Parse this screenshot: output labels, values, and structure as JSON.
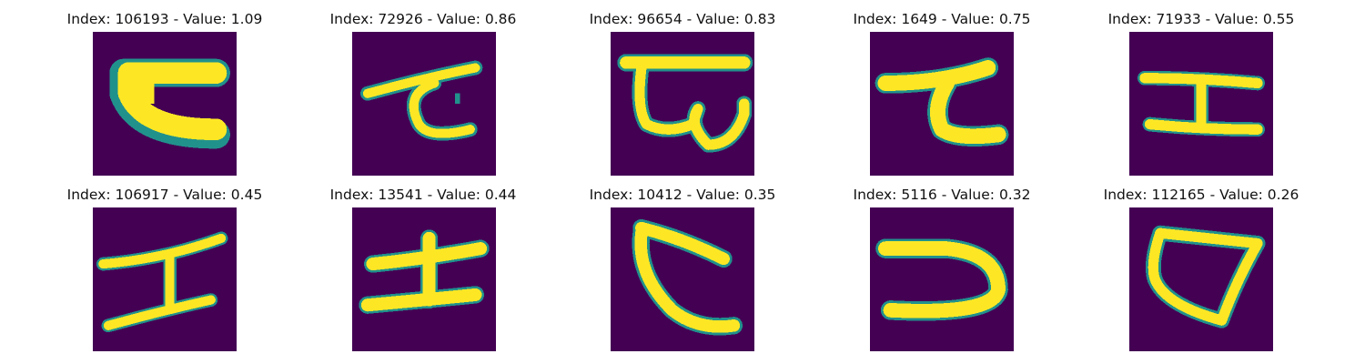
{
  "panels": [
    {
      "title": "Index: 106193 - Value: 1.09",
      "index": 106193,
      "value": 1.09
    },
    {
      "title": "Index: 72926 - Value: 0.86",
      "index": 72926,
      "value": 0.86
    },
    {
      "title": "Index: 96654 - Value: 0.83",
      "index": 96654,
      "value": 0.83
    },
    {
      "title": "Index: 1649 - Value: 0.75",
      "index": 1649,
      "value": 0.75
    },
    {
      "title": "Index: 71933 - Value: 0.55",
      "index": 71933,
      "value": 0.55
    },
    {
      "title": "Index: 106917 - Value: 0.45",
      "index": 106917,
      "value": 0.45
    },
    {
      "title": "Index: 13541 - Value: 0.44",
      "index": 13541,
      "value": 0.44
    },
    {
      "title": "Index: 10412 - Value: 0.35",
      "index": 10412,
      "value": 0.35
    },
    {
      "title": "Index: 5116 - Value: 0.32",
      "index": 5116,
      "value": 0.32
    },
    {
      "title": "Index: 112165 - Value: 0.26",
      "index": 112165,
      "value": 0.26
    }
  ],
  "colors": {
    "background": "#440154",
    "stroke_edge": "#21918c",
    "stroke_mid": "#5ec962",
    "stroke_core": "#fde725"
  },
  "colormap": "viridis"
}
